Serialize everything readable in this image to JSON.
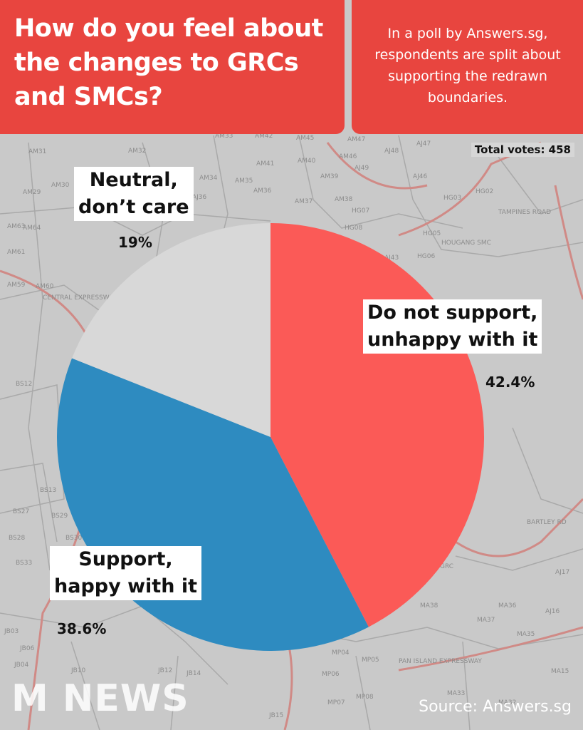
{
  "header": {
    "title": "How do you feel about the changes to GRCs and SMCs?",
    "subtitle": "In a poll by Answers.sg, respondents are split about supporting the redrawn boundaries."
  },
  "total_votes": "Total votes: 458",
  "labels": {
    "not_support": {
      "text": "Do not support,\nunhappy with it",
      "pct": "42.4%"
    },
    "support": {
      "text": "Support,\nhappy with it",
      "pct": "38.6%"
    },
    "neutral": {
      "text": "Neutral,\ndon’t care",
      "pct": "19%"
    }
  },
  "footer": {
    "logo": "M NEWS",
    "source": "Source: Answers.sg"
  },
  "map_labels": [
    "AM31",
    "AM32",
    "AM33",
    "AM42",
    "AM45",
    "AM47",
    "AJ48",
    "AJ47",
    "AM29",
    "AM30",
    "AM34",
    "AM35",
    "AM41",
    "AM40",
    "AM39",
    "AM46",
    "AJ49",
    "AJ46",
    "HG02",
    "HG03",
    "AJ36",
    "AM36",
    "AM37",
    "AM38",
    "HG07",
    "HG08",
    "HG05",
    "HOUGANG SMC",
    "AM63",
    "AM64",
    "AM61",
    "AM59",
    "AM60",
    "AJ43",
    "HG06",
    "BS12",
    "BS13",
    "BS27",
    "BS29",
    "BS30",
    "BS28",
    "BS33",
    "GRC",
    "AJ17",
    "MA38",
    "MA36",
    "AJ16",
    "MA37",
    "MA35",
    "JB03",
    "JB06",
    "JB04",
    "JB10",
    "JB12",
    "JB14",
    "MP04",
    "MP05",
    "MP06",
    "MP08",
    "MA33",
    "MA32",
    "MA15",
    "JB15",
    "MP07",
    "PAN ISLAND EXPRESSWAY",
    "CENTRAL EXPRESSWAY",
    "TAMPINES ROAD",
    "BARTLEY RD"
  ],
  "chart_data": {
    "type": "pie",
    "title": "How do you feel about the changes to GRCs and SMCs?",
    "total": 458,
    "categories": [
      "Do not support, unhappy with it",
      "Support, happy with it",
      "Neutral, don’t care"
    ],
    "values": [
      42.4,
      38.6,
      19
    ],
    "colors": [
      "#fb5a57",
      "#2e8bc0",
      "#d8d8d8"
    ],
    "start_angle": "12 o'clock, clockwise"
  }
}
